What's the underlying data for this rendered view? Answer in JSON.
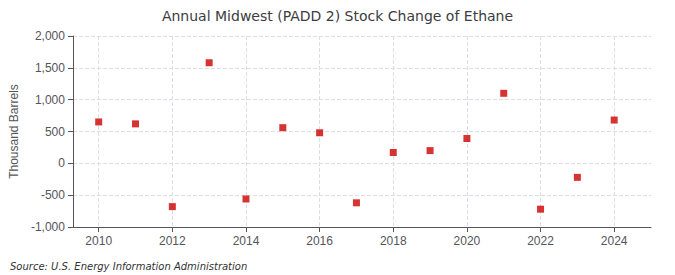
{
  "chart_data": {
    "type": "scatter",
    "title": "Annual Midwest (PADD 2) Stock Change of Ethane",
    "ylabel": "Thousand Barrels",
    "source": "Source: U.S. Energy Information Administration",
    "x": [
      2010,
      2011,
      2012,
      2013,
      2014,
      2015,
      2016,
      2017,
      2018,
      2019,
      2020,
      2021,
      2022,
      2023,
      2024
    ],
    "values": [
      650,
      620,
      -680,
      1580,
      -560,
      560,
      480,
      -620,
      170,
      200,
      390,
      1100,
      -720,
      -220,
      680
    ],
    "color": "#cc0000",
    "marker": "square",
    "xlim": [
      2009.3,
      2025.0
    ],
    "xticks": [
      2010,
      2012,
      2014,
      2016,
      2018,
      2020,
      2022,
      2024
    ],
    "ylim": [
      -1000,
      2000
    ],
    "yticks": [
      {
        "value": -1000,
        "label": "-1,000"
      },
      -500,
      0,
      500,
      {
        "value": 1000,
        "label": "1,000"
      },
      {
        "value": 1500,
        "label": "1,500"
      },
      {
        "value": 2000,
        "label": "2,000"
      }
    ],
    "grid": true
  }
}
